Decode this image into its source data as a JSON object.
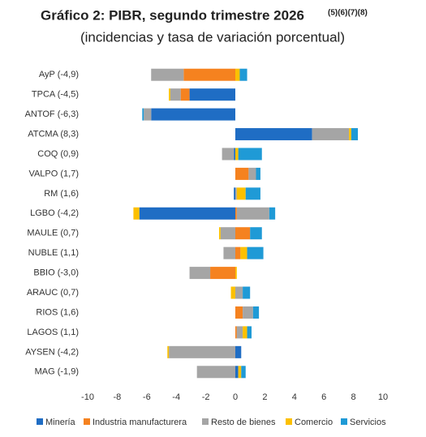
{
  "chart_data": {
    "type": "stacked_barh",
    "title": "Gráfico 2: PIBR, segundo trimestre 2026",
    "title_notes": "(5)(6)(7)(8)",
    "subtitle": "(incidencias y tasa de variación porcentual)",
    "categories": [
      "AyP (-4,9)",
      "TPCA (-4,5)",
      "ANTOF (-6,3)",
      "ATCMA (8,3)",
      "COQ (0,9)",
      "VALPO (1,7)",
      "RM (1,6)",
      "LGBO (-4,2)",
      "MAULE (0,7)",
      "NUBLE (1,1)",
      "BBIO (-3,0)",
      "ARAUC (0,7)",
      "RIOS (1,6)",
      "LAGOS (1,1)",
      "AYSEN (-4,2)",
      "MAG (-1,9)"
    ],
    "series": [
      {
        "name": "Minería",
        "color": "#1f6dc4",
        "values": [
          0,
          -3.1,
          -5.7,
          5.2,
          -0.1,
          0,
          -0.1,
          -6.5,
          0,
          0,
          0,
          0,
          0,
          0,
          0.4,
          0.2
        ]
      },
      {
        "name": "Industria manufacturera",
        "color": "#f5821f",
        "values": [
          -3.5,
          -0.6,
          0,
          0,
          0,
          0.9,
          0,
          0.1,
          1.0,
          0.35,
          -1.7,
          0,
          0.5,
          0.1,
          0,
          0
        ]
      },
      {
        "name": "Resto de bienes",
        "color": "#a5a5a5",
        "values": [
          -2.2,
          -0.7,
          -0.5,
          2.5,
          -0.8,
          0.5,
          0.1,
          2.2,
          -1.0,
          -0.8,
          -1.4,
          0.5,
          0.7,
          0.4,
          -4.5,
          -2.6
        ]
      },
      {
        "name": "Comercio",
        "color": "#fcc000",
        "values": [
          0.3,
          -0.1,
          0,
          0.15,
          0.2,
          0,
          0.6,
          -0.4,
          -0.1,
          0.45,
          0.1,
          -0.3,
          0,
          0.3,
          -0.1,
          0.2
        ]
      },
      {
        "name": "Servicios",
        "color": "#1f9ad6",
        "values": [
          0.5,
          0,
          -0.1,
          0.45,
          1.6,
          0.3,
          1.0,
          0.4,
          0.8,
          1.1,
          0,
          0.5,
          0.4,
          0.3,
          0,
          0.3
        ]
      }
    ],
    "xlim": [
      -10,
      10
    ],
    "xticks": [
      -10,
      -8,
      -6,
      -4,
      -2,
      0,
      2,
      4,
      6,
      8,
      10
    ],
    "legend": "bottom"
  }
}
